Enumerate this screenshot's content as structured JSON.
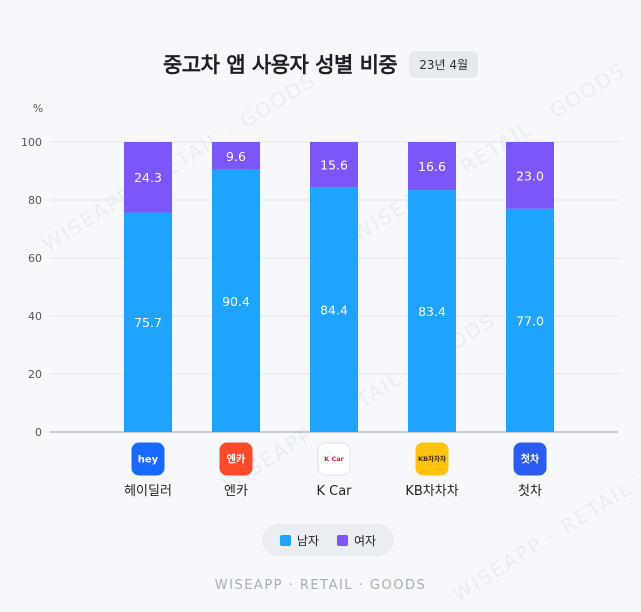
{
  "title": "중고차 앱 사용자 성별 비중",
  "date_badge": "23년 4월",
  "footer": "WISEAPP · RETAIL · GOODS",
  "watermark": "WISEAPP · RETAIL · GOODS",
  "colors": {
    "male": "#1ea4fd",
    "female": "#7b56f9"
  },
  "chart_data": {
    "type": "bar",
    "stacked": true,
    "ylabel": "%",
    "ylim": [
      0,
      100
    ],
    "yticks": [
      0,
      20,
      40,
      60,
      80,
      100
    ],
    "grid": true,
    "categories": [
      "헤이딜러",
      "엔카",
      "K Car",
      "KB차차차",
      "첫차"
    ],
    "series": [
      {
        "name": "남자",
        "values": [
          75.7,
          90.4,
          84.4,
          83.4,
          77.0
        ]
      },
      {
        "name": "여자",
        "values": [
          24.3,
          9.6,
          15.6,
          16.6,
          23.0
        ]
      }
    ],
    "value_labels": {
      "남자": [
        "75.7",
        "90.4",
        "84.4",
        "83.4",
        "77.0"
      ],
      "여자": [
        "24.3",
        "9.6",
        "15.6",
        "16.6",
        "23.0"
      ]
    },
    "legend": [
      "남자",
      "여자"
    ],
    "legend_position": "bottom"
  },
  "app_icons": [
    {
      "name": "heydealer-app-icon",
      "text": "hey",
      "bg": "#1769ff",
      "fg": "#ffffff"
    },
    {
      "name": "encar-app-icon",
      "text": "엔카",
      "bg": "#ff4a2a",
      "fg": "#ffffff"
    },
    {
      "name": "kcar-app-icon",
      "text": "K Car",
      "bg": "#ffffff",
      "fg": "#e3262f"
    },
    {
      "name": "kbchachacha-app-icon",
      "text": "KB차차차",
      "bg": "#ffc20e",
      "fg": "#3c2a00"
    },
    {
      "name": "firstcar-app-icon",
      "text": "첫차",
      "bg": "#2b5bf0",
      "fg": "#ffffff"
    }
  ]
}
